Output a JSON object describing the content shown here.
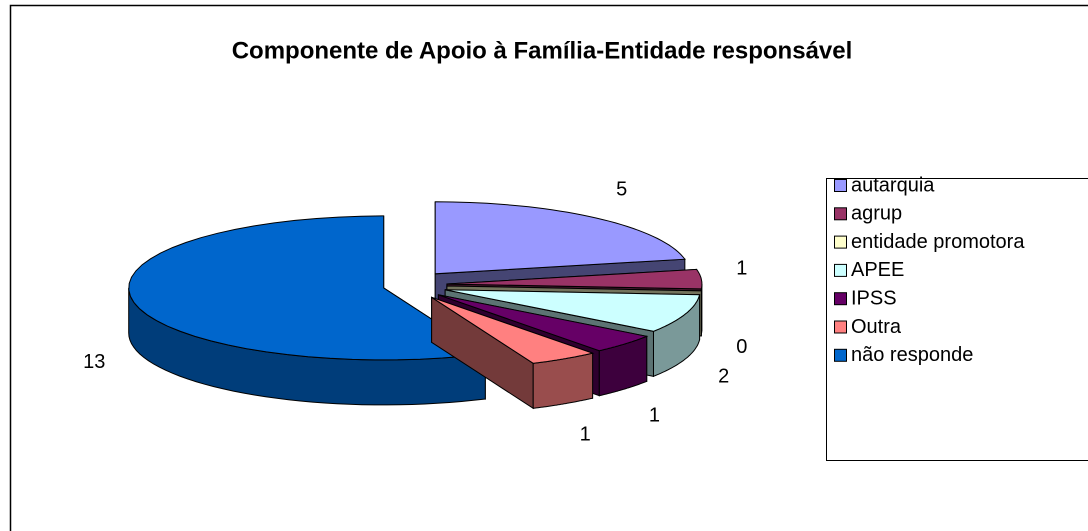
{
  "chart_data": {
    "type": "pie3d",
    "title": "Componente de Apoio à Família-Entidade responsável",
    "categories": [
      "autarquia",
      "agrup",
      "entidade promotora",
      "APEE",
      "IPSS",
      "Outra",
      "não responde"
    ],
    "values": [
      5,
      1,
      0,
      2,
      1,
      1,
      13
    ],
    "colors": [
      "#9999ff",
      "#993366",
      "#ffffcc",
      "#ccffff",
      "#660066",
      "#ff8080",
      "#0066cc"
    ],
    "legend": "right"
  }
}
